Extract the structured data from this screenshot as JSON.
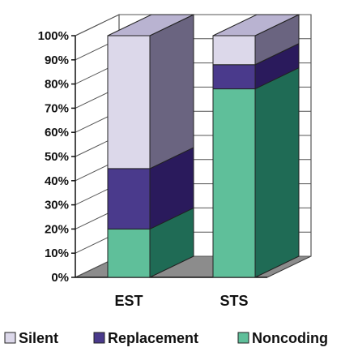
{
  "chart_data": {
    "type": "bar",
    "stacked": true,
    "percent": true,
    "style": "3d",
    "categories": [
      "EST",
      "STS"
    ],
    "series": [
      {
        "name": "Noncoding",
        "values": [
          20,
          78
        ],
        "color": "#5fbf9a",
        "side_color": "#1f6b55"
      },
      {
        "name": "Replacement",
        "values": [
          25,
          10
        ],
        "color": "#4a3a8c",
        "side_color": "#2a1a5c"
      },
      {
        "name": "Silent",
        "values": [
          55,
          12
        ],
        "color": "#dcd8ea",
        "side_color": "#6a6480"
      }
    ],
    "ylim": [
      0,
      100
    ],
    "yticks": [
      "0%",
      "10%",
      "20%",
      "30%",
      "40%",
      "50%",
      "60%",
      "70%",
      "80%",
      "90%",
      "100%"
    ],
    "grid": true,
    "legend_position": "bottom",
    "colors": {
      "top_face": "#b9b3d1",
      "floor": "#8c8c8c",
      "wall": "#ffffff",
      "grid": "#555555"
    }
  }
}
